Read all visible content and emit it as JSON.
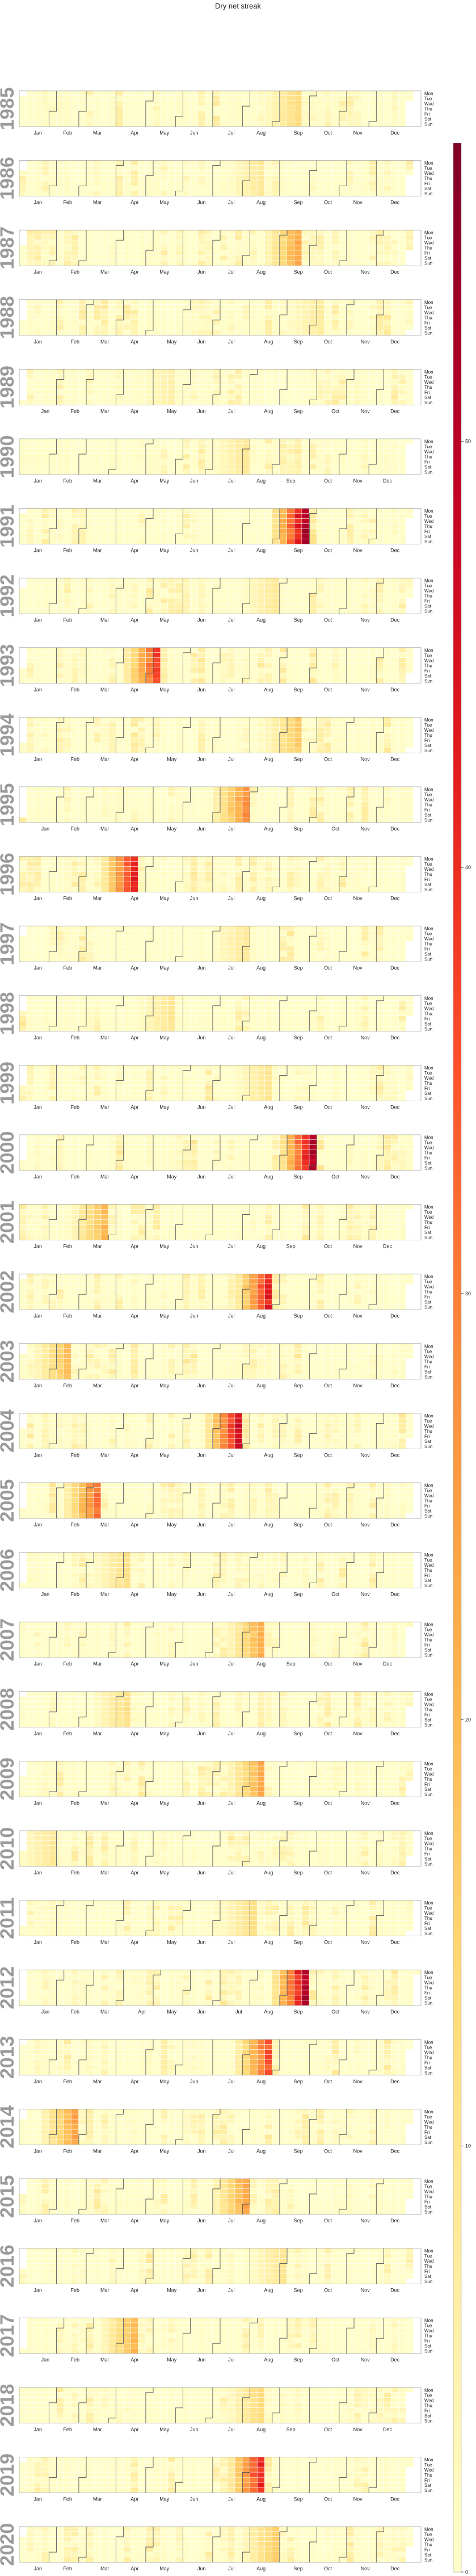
{
  "chart_data": {
    "type": "heatmap",
    "title": "Dry net streak",
    "years": [
      "1985",
      "1986",
      "1987",
      "1988",
      "1989",
      "1990",
      "1991",
      "1992",
      "1993",
      "1994",
      "1995",
      "1996",
      "1997",
      "1998",
      "1999",
      "2000",
      "2001",
      "2002",
      "2003",
      "2004",
      "2005",
      "2006",
      "2007",
      "2008",
      "2009",
      "2010",
      "2011",
      "2012",
      "2013",
      "2014",
      "2015",
      "2016",
      "2017",
      "2018",
      "2019",
      "2020"
    ],
    "month_labels": [
      "Jan",
      "Feb",
      "Mar",
      "Apr",
      "May",
      "Jun",
      "Jul",
      "Aug",
      "Sep",
      "Oct",
      "Nov",
      "Dec"
    ],
    "day_labels": [
      "Mon",
      "Tue",
      "Wed",
      "Thu",
      "Fri",
      "Sat",
      "Sun"
    ],
    "colorbar": {
      "min": 0,
      "max": 57,
      "ticks": [
        "0",
        "10",
        "20",
        "30",
        "40",
        "50"
      ],
      "colors": [
        "#ffffcc",
        "#ffeda0",
        "#fed976",
        "#feb24c",
        "#fd8d3c",
        "#fc4e2a",
        "#e31a1c",
        "#bd0026",
        "#800026"
      ]
    },
    "peak_streaks": [
      {
        "year": "1985",
        "max": 14,
        "peak_week": 37
      },
      {
        "year": "1986",
        "max": 9,
        "peak_week": 32
      },
      {
        "year": "1987",
        "max": 25,
        "peak_week": 37
      },
      {
        "year": "1988",
        "max": 8,
        "peak_week": 40
      },
      {
        "year": "1989",
        "max": 6,
        "peak_week": 20
      },
      {
        "year": "1990",
        "max": 9,
        "peak_week": 30
      },
      {
        "year": "1991",
        "max": 57,
        "peak_week": 38
      },
      {
        "year": "1992",
        "max": 9,
        "peak_week": 34
      },
      {
        "year": "1993",
        "max": 40,
        "peak_week": 18
      },
      {
        "year": "1994",
        "max": 18,
        "peak_week": 37
      },
      {
        "year": "1995",
        "max": 30,
        "peak_week": 30
      },
      {
        "year": "1996",
        "max": 45,
        "peak_week": 15
      },
      {
        "year": "1997",
        "max": 9,
        "peak_week": 30
      },
      {
        "year": "1998",
        "max": 10,
        "peak_week": 20
      },
      {
        "year": "1999",
        "max": 10,
        "peak_week": 33
      },
      {
        "year": "2000",
        "max": 56,
        "peak_week": 39
      },
      {
        "year": "2001",
        "max": 22,
        "peak_week": 11
      },
      {
        "year": "2002",
        "max": 45,
        "peak_week": 33
      },
      {
        "year": "2003",
        "max": 20,
        "peak_week": 6
      },
      {
        "year": "2004",
        "max": 50,
        "peak_week": 29
      },
      {
        "year": "2005",
        "max": 35,
        "peak_week": 10
      },
      {
        "year": "2006",
        "max": 12,
        "peak_week": 14
      },
      {
        "year": "2007",
        "max": 24,
        "peak_week": 32
      },
      {
        "year": "2008",
        "max": 12,
        "peak_week": 14
      },
      {
        "year": "2009",
        "max": 24,
        "peak_week": 32
      },
      {
        "year": "2010",
        "max": 9,
        "peak_week": 4
      },
      {
        "year": "2011",
        "max": 12,
        "peak_week": 31
      },
      {
        "year": "2012",
        "max": 55,
        "peak_week": 38
      },
      {
        "year": "2013",
        "max": 38,
        "peak_week": 33
      },
      {
        "year": "2014",
        "max": 26,
        "peak_week": 7
      },
      {
        "year": "2015",
        "max": 26,
        "peak_week": 30
      },
      {
        "year": "2016",
        "max": 10,
        "peak_week": 35
      },
      {
        "year": "2017",
        "max": 22,
        "peak_week": 15
      },
      {
        "year": "2018",
        "max": 14,
        "peak_week": 32
      },
      {
        "year": "2019",
        "max": 45,
        "peak_week": 32
      },
      {
        "year": "2020",
        "max": 18,
        "peak_week": 34
      }
    ]
  }
}
